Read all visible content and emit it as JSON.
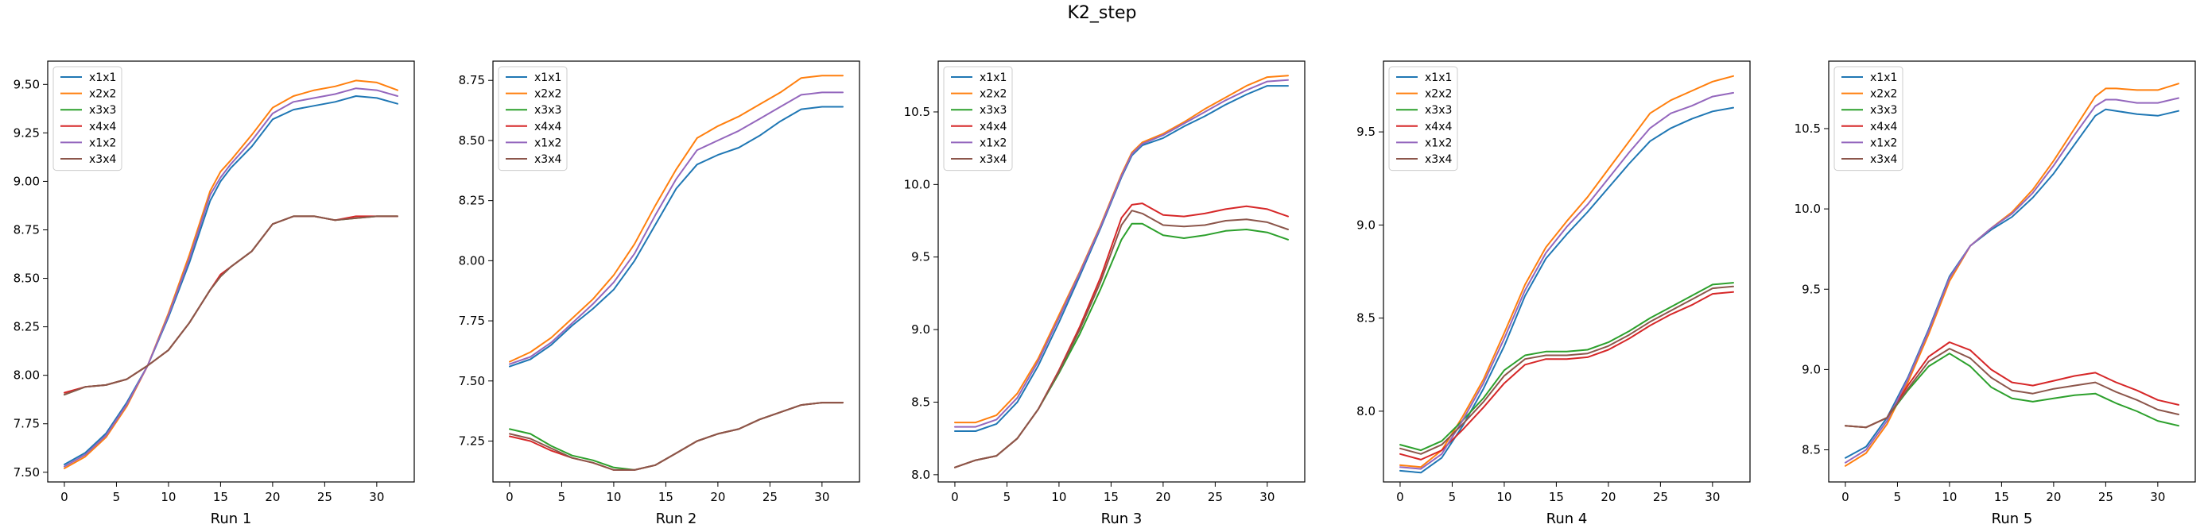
{
  "figure": {
    "title": "K2_step"
  },
  "series_colors": {
    "x1x1": "#1f77b4",
    "x2x2": "#ff7f0e",
    "x3x3": "#2ca02c",
    "x4x4": "#d62728",
    "x1x2": "#9467bd",
    "x3x4": "#8c564b"
  },
  "chart_data": [
    {
      "type": "line",
      "title": "",
      "xlabel": "Run 1",
      "ylabel": "",
      "xlim": [
        -1.6,
        33.6
      ],
      "ylim": [
        7.45,
        9.62
      ],
      "xticks": [
        0,
        5,
        10,
        15,
        20,
        25,
        30
      ],
      "yticks": [
        7.5,
        7.75,
        8.0,
        8.25,
        8.5,
        8.75,
        9.0,
        9.25,
        9.5
      ],
      "ytick_labels": [
        "7.50",
        "7.75",
        "8.00",
        "8.25",
        "8.50",
        "8.75",
        "9.00",
        "9.25",
        "9.50"
      ],
      "legend": "upper-left",
      "grid": false,
      "x": [
        0,
        2,
        4,
        6,
        8,
        10,
        12,
        14,
        15,
        16,
        18,
        20,
        22,
        24,
        26,
        28,
        30,
        32
      ],
      "series": [
        {
          "name": "x1x1",
          "values": [
            7.54,
            7.6,
            7.7,
            7.86,
            8.05,
            8.3,
            8.58,
            8.9,
            9.0,
            9.07,
            9.18,
            9.32,
            9.37,
            9.39,
            9.41,
            9.44,
            9.43,
            9.4
          ]
        },
        {
          "name": "x2x2",
          "values": [
            7.52,
            7.58,
            7.68,
            7.84,
            8.05,
            8.32,
            8.62,
            8.95,
            9.05,
            9.11,
            9.24,
            9.38,
            9.44,
            9.47,
            9.49,
            9.52,
            9.51,
            9.47
          ]
        },
        {
          "name": "x3x3",
          "values": [
            7.9,
            7.94,
            7.95,
            7.98,
            8.05,
            8.13,
            8.27,
            8.44,
            8.51,
            8.56,
            8.64,
            8.78,
            8.82,
            8.82,
            8.8,
            8.81,
            8.82,
            8.82
          ]
        },
        {
          "name": "x4x4",
          "values": [
            7.91,
            7.94,
            7.95,
            7.98,
            8.05,
            8.13,
            8.27,
            8.44,
            8.52,
            8.56,
            8.64,
            8.78,
            8.82,
            8.82,
            8.8,
            8.82,
            8.82,
            8.82
          ]
        },
        {
          "name": "x1x2",
          "values": [
            7.53,
            7.59,
            7.69,
            7.85,
            8.05,
            8.31,
            8.6,
            8.93,
            9.02,
            9.09,
            9.21,
            9.35,
            9.41,
            9.43,
            9.45,
            9.48,
            9.47,
            9.44
          ]
        },
        {
          "name": "x3x4",
          "values": [
            7.9,
            7.94,
            7.95,
            7.98,
            8.05,
            8.13,
            8.27,
            8.44,
            8.51,
            8.56,
            8.64,
            8.78,
            8.82,
            8.82,
            8.8,
            8.81,
            8.82,
            8.82
          ]
        }
      ]
    },
    {
      "type": "line",
      "title": "",
      "xlabel": "Run 2",
      "ylabel": "",
      "xlim": [
        -1.6,
        33.6
      ],
      "ylim": [
        7.08,
        8.83
      ],
      "xticks": [
        0,
        5,
        10,
        15,
        20,
        25,
        30
      ],
      "yticks": [
        7.25,
        7.5,
        7.75,
        8.0,
        8.25,
        8.5,
        8.75
      ],
      "ytick_labels": [
        "7.25",
        "7.50",
        "7.75",
        "8.00",
        "8.25",
        "8.50",
        "8.75"
      ],
      "legend": "upper-left",
      "grid": false,
      "x": [
        0,
        2,
        4,
        6,
        8,
        10,
        12,
        14,
        16,
        18,
        20,
        22,
        24,
        26,
        28,
        30,
        32
      ],
      "series": [
        {
          "name": "x1x1",
          "values": [
            7.56,
            7.59,
            7.65,
            7.73,
            7.8,
            7.88,
            8.0,
            8.15,
            8.3,
            8.4,
            8.44,
            8.47,
            8.52,
            8.58,
            8.63,
            8.64,
            8.64
          ]
        },
        {
          "name": "x2x2",
          "values": [
            7.58,
            7.62,
            7.68,
            7.76,
            7.84,
            7.94,
            8.07,
            8.23,
            8.38,
            8.51,
            8.56,
            8.6,
            8.65,
            8.7,
            8.76,
            8.77,
            8.77
          ]
        },
        {
          "name": "x3x3",
          "values": [
            7.3,
            7.28,
            7.23,
            7.19,
            7.17,
            7.14,
            7.13,
            7.15,
            7.2,
            7.25,
            7.28,
            7.3,
            7.34,
            7.37,
            7.4,
            7.41,
            7.41
          ]
        },
        {
          "name": "x4x4",
          "values": [
            7.27,
            7.25,
            7.21,
            7.18,
            7.16,
            7.13,
            7.13,
            7.15,
            7.2,
            7.25,
            7.28,
            7.3,
            7.34,
            7.37,
            7.4,
            7.41,
            7.41
          ]
        },
        {
          "name": "x1x2",
          "values": [
            7.57,
            7.6,
            7.66,
            7.74,
            7.82,
            7.91,
            8.03,
            8.19,
            8.34,
            8.46,
            8.5,
            8.54,
            8.59,
            8.64,
            8.69,
            8.7,
            8.7
          ]
        },
        {
          "name": "x3x4",
          "values": [
            7.28,
            7.26,
            7.22,
            7.18,
            7.16,
            7.13,
            7.13,
            7.15,
            7.2,
            7.25,
            7.28,
            7.3,
            7.34,
            7.37,
            7.4,
            7.41,
            7.41
          ]
        }
      ]
    },
    {
      "type": "line",
      "title": "",
      "xlabel": "Run 3",
      "ylabel": "",
      "xlim": [
        -1.6,
        33.6
      ],
      "ylim": [
        7.95,
        10.85
      ],
      "xticks": [
        0,
        5,
        10,
        15,
        20,
        25,
        30
      ],
      "yticks": [
        8.0,
        8.5,
        9.0,
        9.5,
        10.0,
        10.5
      ],
      "ytick_labels": [
        "8.0",
        "8.5",
        "9.0",
        "9.5",
        "10.0",
        "10.5"
      ],
      "legend": "upper-left",
      "grid": false,
      "x": [
        0,
        2,
        4,
        6,
        8,
        10,
        12,
        14,
        16,
        17,
        18,
        20,
        22,
        24,
        26,
        28,
        30,
        32
      ],
      "series": [
        {
          "name": "x1x1",
          "values": [
            8.3,
            8.3,
            8.35,
            8.5,
            8.75,
            9.05,
            9.37,
            9.7,
            10.05,
            10.2,
            10.27,
            10.32,
            10.4,
            10.47,
            10.55,
            10.62,
            10.68,
            10.68
          ]
        },
        {
          "name": "x2x2",
          "values": [
            8.36,
            8.36,
            8.41,
            8.56,
            8.8,
            9.1,
            9.4,
            9.72,
            10.07,
            10.22,
            10.29,
            10.35,
            10.43,
            10.52,
            10.6,
            10.68,
            10.74,
            10.75
          ]
        },
        {
          "name": "x3x3",
          "values": [
            8.05,
            8.1,
            8.13,
            8.25,
            8.45,
            8.7,
            8.97,
            9.28,
            9.62,
            9.73,
            9.73,
            9.65,
            9.63,
            9.65,
            9.68,
            9.69,
            9.67,
            9.62
          ]
        },
        {
          "name": "x4x4",
          "values": [
            8.05,
            8.1,
            8.13,
            8.25,
            8.45,
            8.72,
            9.02,
            9.36,
            9.77,
            9.86,
            9.87,
            9.79,
            9.78,
            9.8,
            9.83,
            9.85,
            9.83,
            9.78
          ]
        },
        {
          "name": "x1x2",
          "values": [
            8.33,
            8.33,
            8.38,
            8.53,
            8.78,
            9.08,
            9.39,
            9.71,
            10.06,
            10.21,
            10.28,
            10.34,
            10.42,
            10.5,
            10.58,
            10.65,
            10.71,
            10.72
          ]
        },
        {
          "name": "x3x4",
          "values": [
            8.05,
            8.1,
            8.13,
            8.25,
            8.45,
            8.71,
            9.0,
            9.33,
            9.72,
            9.82,
            9.8,
            9.72,
            9.71,
            9.72,
            9.75,
            9.76,
            9.74,
            9.69
          ]
        }
      ]
    },
    {
      "type": "line",
      "title": "",
      "xlabel": "Run 4",
      "ylabel": "",
      "xlim": [
        -1.6,
        33.6
      ],
      "ylim": [
        7.62,
        9.88
      ],
      "xticks": [
        0,
        5,
        10,
        15,
        20,
        25,
        30
      ],
      "yticks": [
        8.0,
        8.5,
        9.0,
        9.5
      ],
      "ytick_labels": [
        "8.0",
        "8.5",
        "9.0",
        "9.5"
      ],
      "legend": "upper-left",
      "grid": false,
      "x": [
        0,
        2,
        4,
        6,
        8,
        10,
        12,
        14,
        16,
        18,
        20,
        22,
        24,
        26,
        28,
        30,
        32
      ],
      "series": [
        {
          "name": "x1x1",
          "values": [
            7.68,
            7.67,
            7.75,
            7.92,
            8.12,
            8.35,
            8.62,
            8.82,
            8.95,
            9.07,
            9.2,
            9.33,
            9.45,
            9.52,
            9.57,
            9.61,
            9.63
          ]
        },
        {
          "name": "x2x2",
          "values": [
            7.71,
            7.7,
            7.79,
            7.97,
            8.17,
            8.42,
            8.68,
            8.88,
            9.02,
            9.15,
            9.3,
            9.45,
            9.6,
            9.67,
            9.72,
            9.77,
            9.8
          ]
        },
        {
          "name": "x3x3",
          "values": [
            7.82,
            7.79,
            7.84,
            7.95,
            8.07,
            8.22,
            8.3,
            8.32,
            8.32,
            8.33,
            8.37,
            8.43,
            8.5,
            8.56,
            8.62,
            8.68,
            8.69
          ]
        },
        {
          "name": "x4x4",
          "values": [
            7.77,
            7.74,
            7.79,
            7.9,
            8.02,
            8.15,
            8.25,
            8.28,
            8.28,
            8.29,
            8.33,
            8.39,
            8.46,
            8.52,
            8.57,
            8.63,
            8.64
          ]
        },
        {
          "name": "x1x2",
          "values": [
            7.7,
            7.69,
            7.77,
            7.95,
            8.15,
            8.39,
            8.65,
            8.85,
            8.99,
            9.11,
            9.25,
            9.39,
            9.52,
            9.6,
            9.64,
            9.69,
            9.71
          ]
        },
        {
          "name": "x3x4",
          "values": [
            7.8,
            7.77,
            7.82,
            7.93,
            8.05,
            8.19,
            8.28,
            8.3,
            8.3,
            8.31,
            8.35,
            8.41,
            8.48,
            8.54,
            8.6,
            8.66,
            8.67
          ]
        }
      ]
    },
    {
      "type": "line",
      "title": "",
      "xlabel": "Run 5",
      "ylabel": "",
      "xlim": [
        -1.6,
        33.6
      ],
      "ylim": [
        8.3,
        10.92
      ],
      "xticks": [
        0,
        5,
        10,
        15,
        20,
        25,
        30
      ],
      "yticks": [
        8.5,
        9.0,
        9.5,
        10.0,
        10.5
      ],
      "ytick_labels": [
        "8.5",
        "9.0",
        "9.5",
        "10.0",
        "10.5"
      ],
      "legend": "upper-left",
      "grid": false,
      "x": [
        0,
        2,
        4,
        6,
        8,
        10,
        12,
        14,
        16,
        18,
        20,
        22,
        24,
        25,
        26,
        28,
        30,
        32
      ],
      "series": [
        {
          "name": "x1x1",
          "values": [
            8.45,
            8.52,
            8.7,
            8.95,
            9.25,
            9.58,
            9.77,
            9.87,
            9.95,
            10.07,
            10.22,
            10.4,
            10.58,
            10.62,
            10.61,
            10.59,
            10.58,
            10.61
          ]
        },
        {
          "name": "x2x2",
          "values": [
            8.4,
            8.48,
            8.66,
            8.92,
            9.22,
            9.55,
            9.77,
            9.88,
            9.98,
            10.12,
            10.3,
            10.5,
            10.7,
            10.75,
            10.75,
            10.74,
            10.74,
            10.78
          ]
        },
        {
          "name": "x3x3",
          "values": [
            8.65,
            8.64,
            8.7,
            8.87,
            9.02,
            9.1,
            9.02,
            8.89,
            8.82,
            8.8,
            8.82,
            8.84,
            8.85,
            8.82,
            8.79,
            8.74,
            8.68,
            8.65
          ]
        },
        {
          "name": "x4x4",
          "values": [
            8.65,
            8.64,
            8.7,
            8.9,
            9.08,
            9.17,
            9.12,
            9.0,
            8.92,
            8.9,
            8.93,
            8.96,
            8.98,
            8.95,
            8.92,
            8.87,
            8.81,
            8.78
          ]
        },
        {
          "name": "x1x2",
          "values": [
            8.42,
            8.5,
            8.68,
            8.94,
            9.24,
            9.57,
            9.77,
            9.88,
            9.97,
            10.1,
            10.27,
            10.46,
            10.64,
            10.68,
            10.68,
            10.66,
            10.66,
            10.69
          ]
        },
        {
          "name": "x3x4",
          "values": [
            8.65,
            8.64,
            8.7,
            8.88,
            9.05,
            9.13,
            9.07,
            8.95,
            8.87,
            8.85,
            8.88,
            8.9,
            8.92,
            8.89,
            8.86,
            8.81,
            8.75,
            8.72
          ]
        }
      ]
    }
  ]
}
